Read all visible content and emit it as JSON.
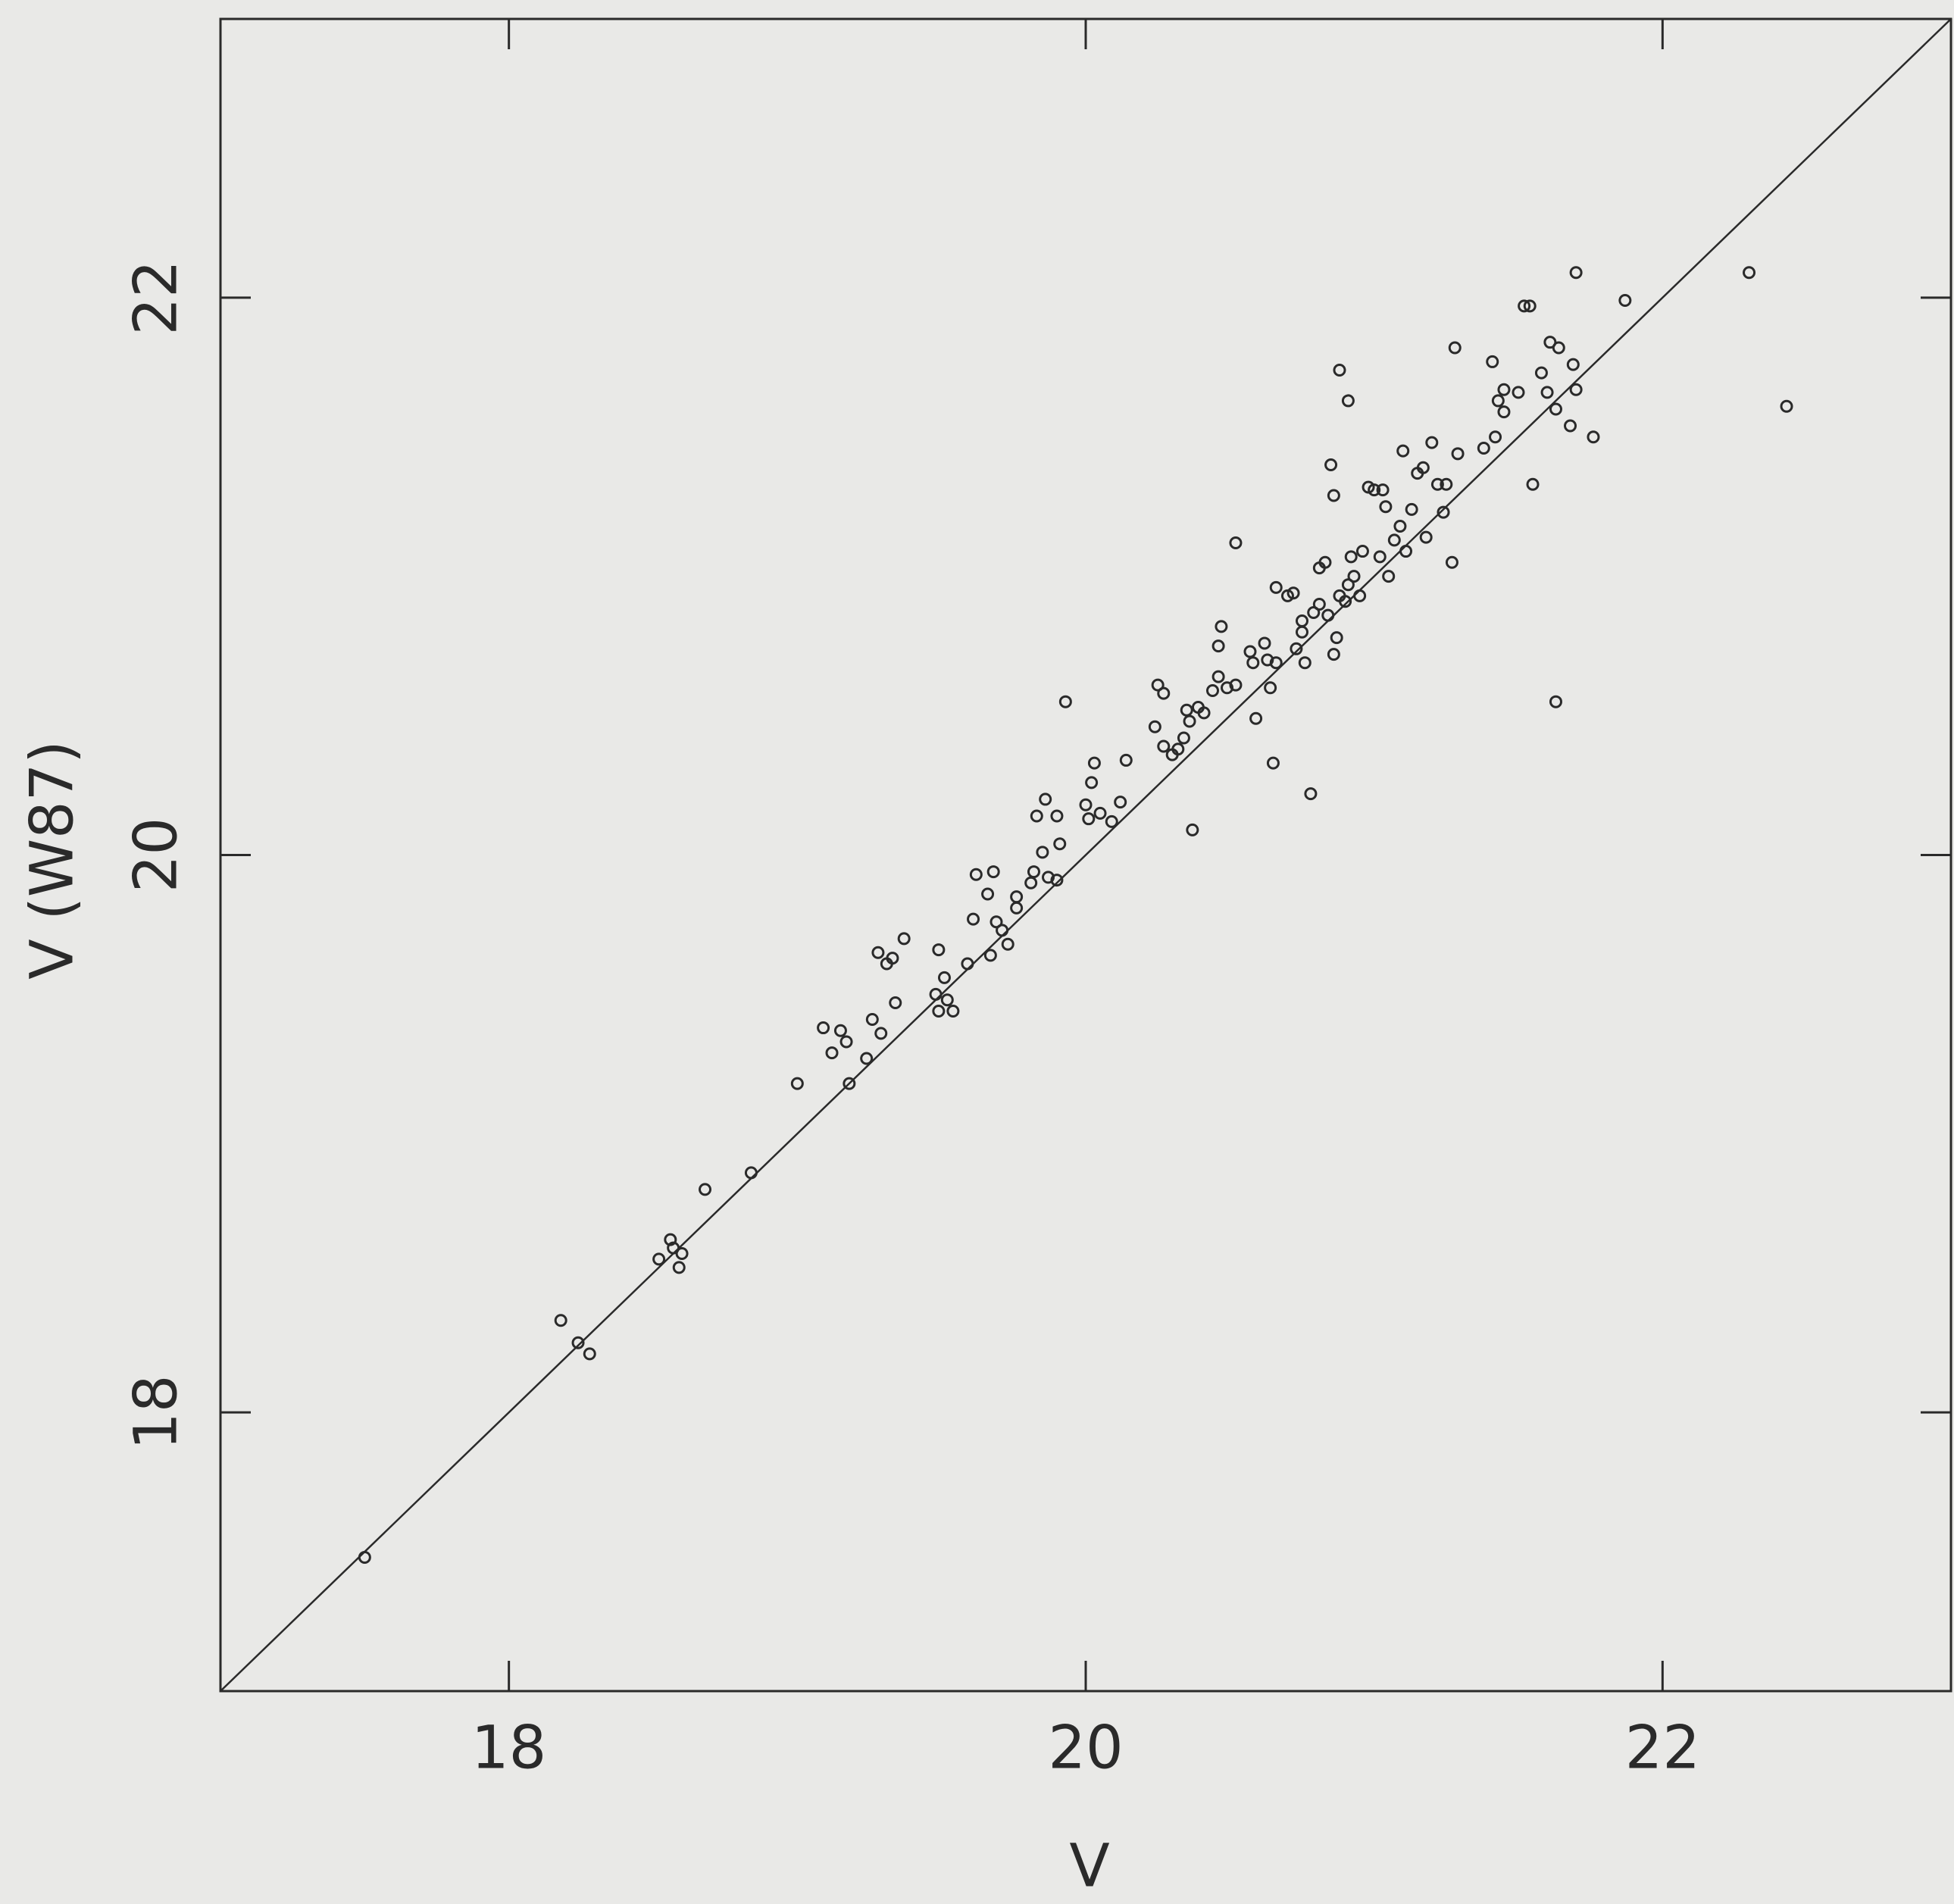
{
  "chart_data": {
    "type": "scatter",
    "x_label": "V",
    "y_label": "V (W87)",
    "xlim": [
      17,
      23
    ],
    "ylim": [
      17,
      23
    ],
    "xticks": [
      18,
      20,
      22
    ],
    "yticks": [
      18,
      20,
      22
    ],
    "diagonal": true,
    "color": "#2a2a2a",
    "x": [
      17.5,
      18.18,
      18.24,
      18.28,
      18.52,
      18.56,
      18.57,
      18.6,
      18.59,
      18.68,
      18.84,
      19.0,
      19.09,
      19.12,
      19.15,
      19.18,
      19.17,
      19.24,
      19.26,
      19.29,
      19.28,
      19.31,
      19.34,
      19.33,
      19.37,
      19.48,
      19.49,
      19.49,
      19.51,
      19.52,
      19.54,
      19.59,
      19.61,
      19.62,
      19.66,
      19.68,
      19.67,
      19.69,
      19.71,
      19.73,
      19.76,
      19.76,
      19.81,
      19.82,
      19.83,
      19.85,
      19.86,
      19.87,
      19.9,
      19.9,
      19.91,
      19.93,
      20.0,
      20.01,
      20.02,
      20.03,
      20.05,
      20.09,
      20.12,
      20.14,
      20.24,
      20.25,
      20.27,
      20.27,
      20.3,
      20.32,
      20.34,
      20.35,
      20.36,
      20.37,
      20.39,
      20.41,
      20.44,
      20.46,
      20.46,
      20.47,
      20.49,
      20.52,
      20.52,
      20.57,
      20.58,
      20.59,
      20.62,
      20.63,
      20.65,
      20.64,
      20.66,
      20.66,
      20.7,
      20.72,
      20.73,
      20.75,
      20.75,
      20.76,
      20.78,
      20.79,
      20.81,
      20.83,
      20.81,
      20.84,
      20.85,
      20.86,
      20.86,
      20.87,
      20.88,
      20.88,
      20.9,
      20.91,
      20.91,
      20.92,
      20.93,
      20.95,
      20.96,
      20.98,
      21.0,
      21.02,
      21.03,
      21.04,
      21.05,
      21.07,
      21.09,
      21.1,
      21.11,
      21.13,
      21.15,
      21.17,
      21.18,
      21.2,
      21.22,
      21.24,
      21.25,
      21.27,
      21.29,
      21.28,
      21.38,
      21.41,
      21.42,
      21.43,
      21.45,
      21.45,
      21.5,
      21.52,
      21.54,
      21.55,
      21.58,
      21.6,
      21.61,
      21.63,
      21.64,
      21.63,
      21.68,
      21.69,
      21.7,
      21.7,
      21.76,
      21.87,
      22.3,
      22.43
    ],
    "values": [
      17.48,
      18.33,
      18.25,
      18.21,
      18.55,
      18.62,
      18.59,
      18.57,
      18.52,
      18.8,
      18.86,
      19.18,
      19.38,
      19.29,
      19.37,
      19.18,
      19.33,
      19.27,
      19.41,
      19.36,
      19.65,
      19.61,
      19.47,
      19.63,
      19.7,
      19.5,
      19.66,
      19.44,
      19.56,
      19.48,
      19.44,
      19.61,
      19.77,
      19.93,
      19.86,
      19.94,
      19.64,
      19.76,
      19.73,
      19.68,
      19.81,
      19.85,
      19.9,
      19.94,
      20.14,
      20.01,
      20.2,
      19.92,
      19.91,
      20.14,
      20.04,
      20.55,
      20.18,
      20.13,
      20.26,
      20.33,
      20.15,
      20.12,
      20.19,
      20.34,
      20.46,
      20.61,
      20.58,
      20.39,
      20.36,
      20.38,
      20.42,
      20.52,
      20.48,
      20.09,
      20.53,
      20.51,
      20.59,
      20.64,
      20.75,
      20.82,
      20.6,
      20.61,
      21.12,
      20.73,
      20.69,
      20.49,
      20.76,
      20.7,
      20.33,
      20.6,
      20.96,
      20.69,
      20.93,
      20.94,
      20.74,
      20.8,
      20.84,
      20.69,
      20.22,
      20.87,
      21.03,
      21.05,
      20.9,
      20.86,
      21.4,
      21.29,
      20.72,
      20.78,
      20.93,
      21.74,
      20.91,
      21.63,
      20.97,
      21.07,
      21.0,
      20.93,
      21.09,
      21.32,
      21.31,
      21.07,
      21.31,
      21.25,
      21.0,
      21.13,
      21.18,
      21.45,
      21.09,
      21.24,
      21.37,
      21.39,
      21.14,
      21.48,
      21.33,
      21.23,
      21.33,
      21.05,
      21.44,
      21.82,
      21.46,
      21.77,
      21.5,
      21.63,
      21.67,
      21.59,
      21.66,
      21.97,
      21.97,
      21.33,
      21.73,
      21.66,
      21.84,
      20.55,
      21.82,
      21.6,
      21.54,
      21.76,
      22.09,
      21.67,
      21.5,
      21.99,
      22.09,
      21.61
    ]
  }
}
